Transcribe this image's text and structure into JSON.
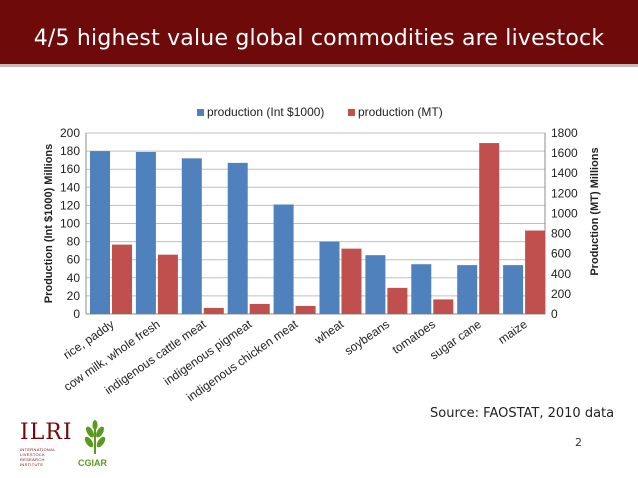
{
  "slide": {
    "title": "4/5 highest value global commodities are livestock",
    "source": "Source: FAOSTAT, 2010 data",
    "page_number": "2"
  },
  "logos": {
    "ilri_text": "ILRI",
    "ilri_subtext": "INTERNATIONAL LIVESTOCK RESEARCH INSTITUTE",
    "cgiar_text": "CGIAR"
  },
  "colors": {
    "title_bar": "#6e0a0a",
    "series_value": "#4f81bd",
    "series_mt": "#c0504d"
  },
  "chart_data": {
    "type": "bar",
    "categories": [
      "rice, paddy",
      "cow milk, whole fresh",
      "indigenous cattle meat",
      "indigenous pigmeat",
      "indigenous chicken meat",
      "wheat",
      "soybeans",
      "tomatoes",
      "sugar cane",
      "maize"
    ],
    "series": [
      {
        "name": "production (Int $1000)",
        "axis": "left",
        "color": "#4f81bd",
        "values": [
          180,
          179,
          172,
          167,
          121,
          80,
          65,
          55,
          54,
          54
        ]
      },
      {
        "name": "production (MT)",
        "axis": "right",
        "color": "#c0504d",
        "values": [
          690,
          590,
          60,
          100,
          80,
          650,
          260,
          145,
          1700,
          830
        ]
      }
    ],
    "ylabel": "Production (Int $1000) Millions",
    "y2label": "Production (MT) Millions",
    "ylim": [
      0,
      200
    ],
    "y2lim": [
      0,
      1800
    ],
    "yticks": [
      0,
      20,
      40,
      60,
      80,
      100,
      120,
      140,
      160,
      180,
      200
    ],
    "y2ticks": [
      0,
      200,
      400,
      600,
      800,
      1000,
      1200,
      1400,
      1600,
      1800
    ],
    "grid": true,
    "legend_position": "top"
  }
}
